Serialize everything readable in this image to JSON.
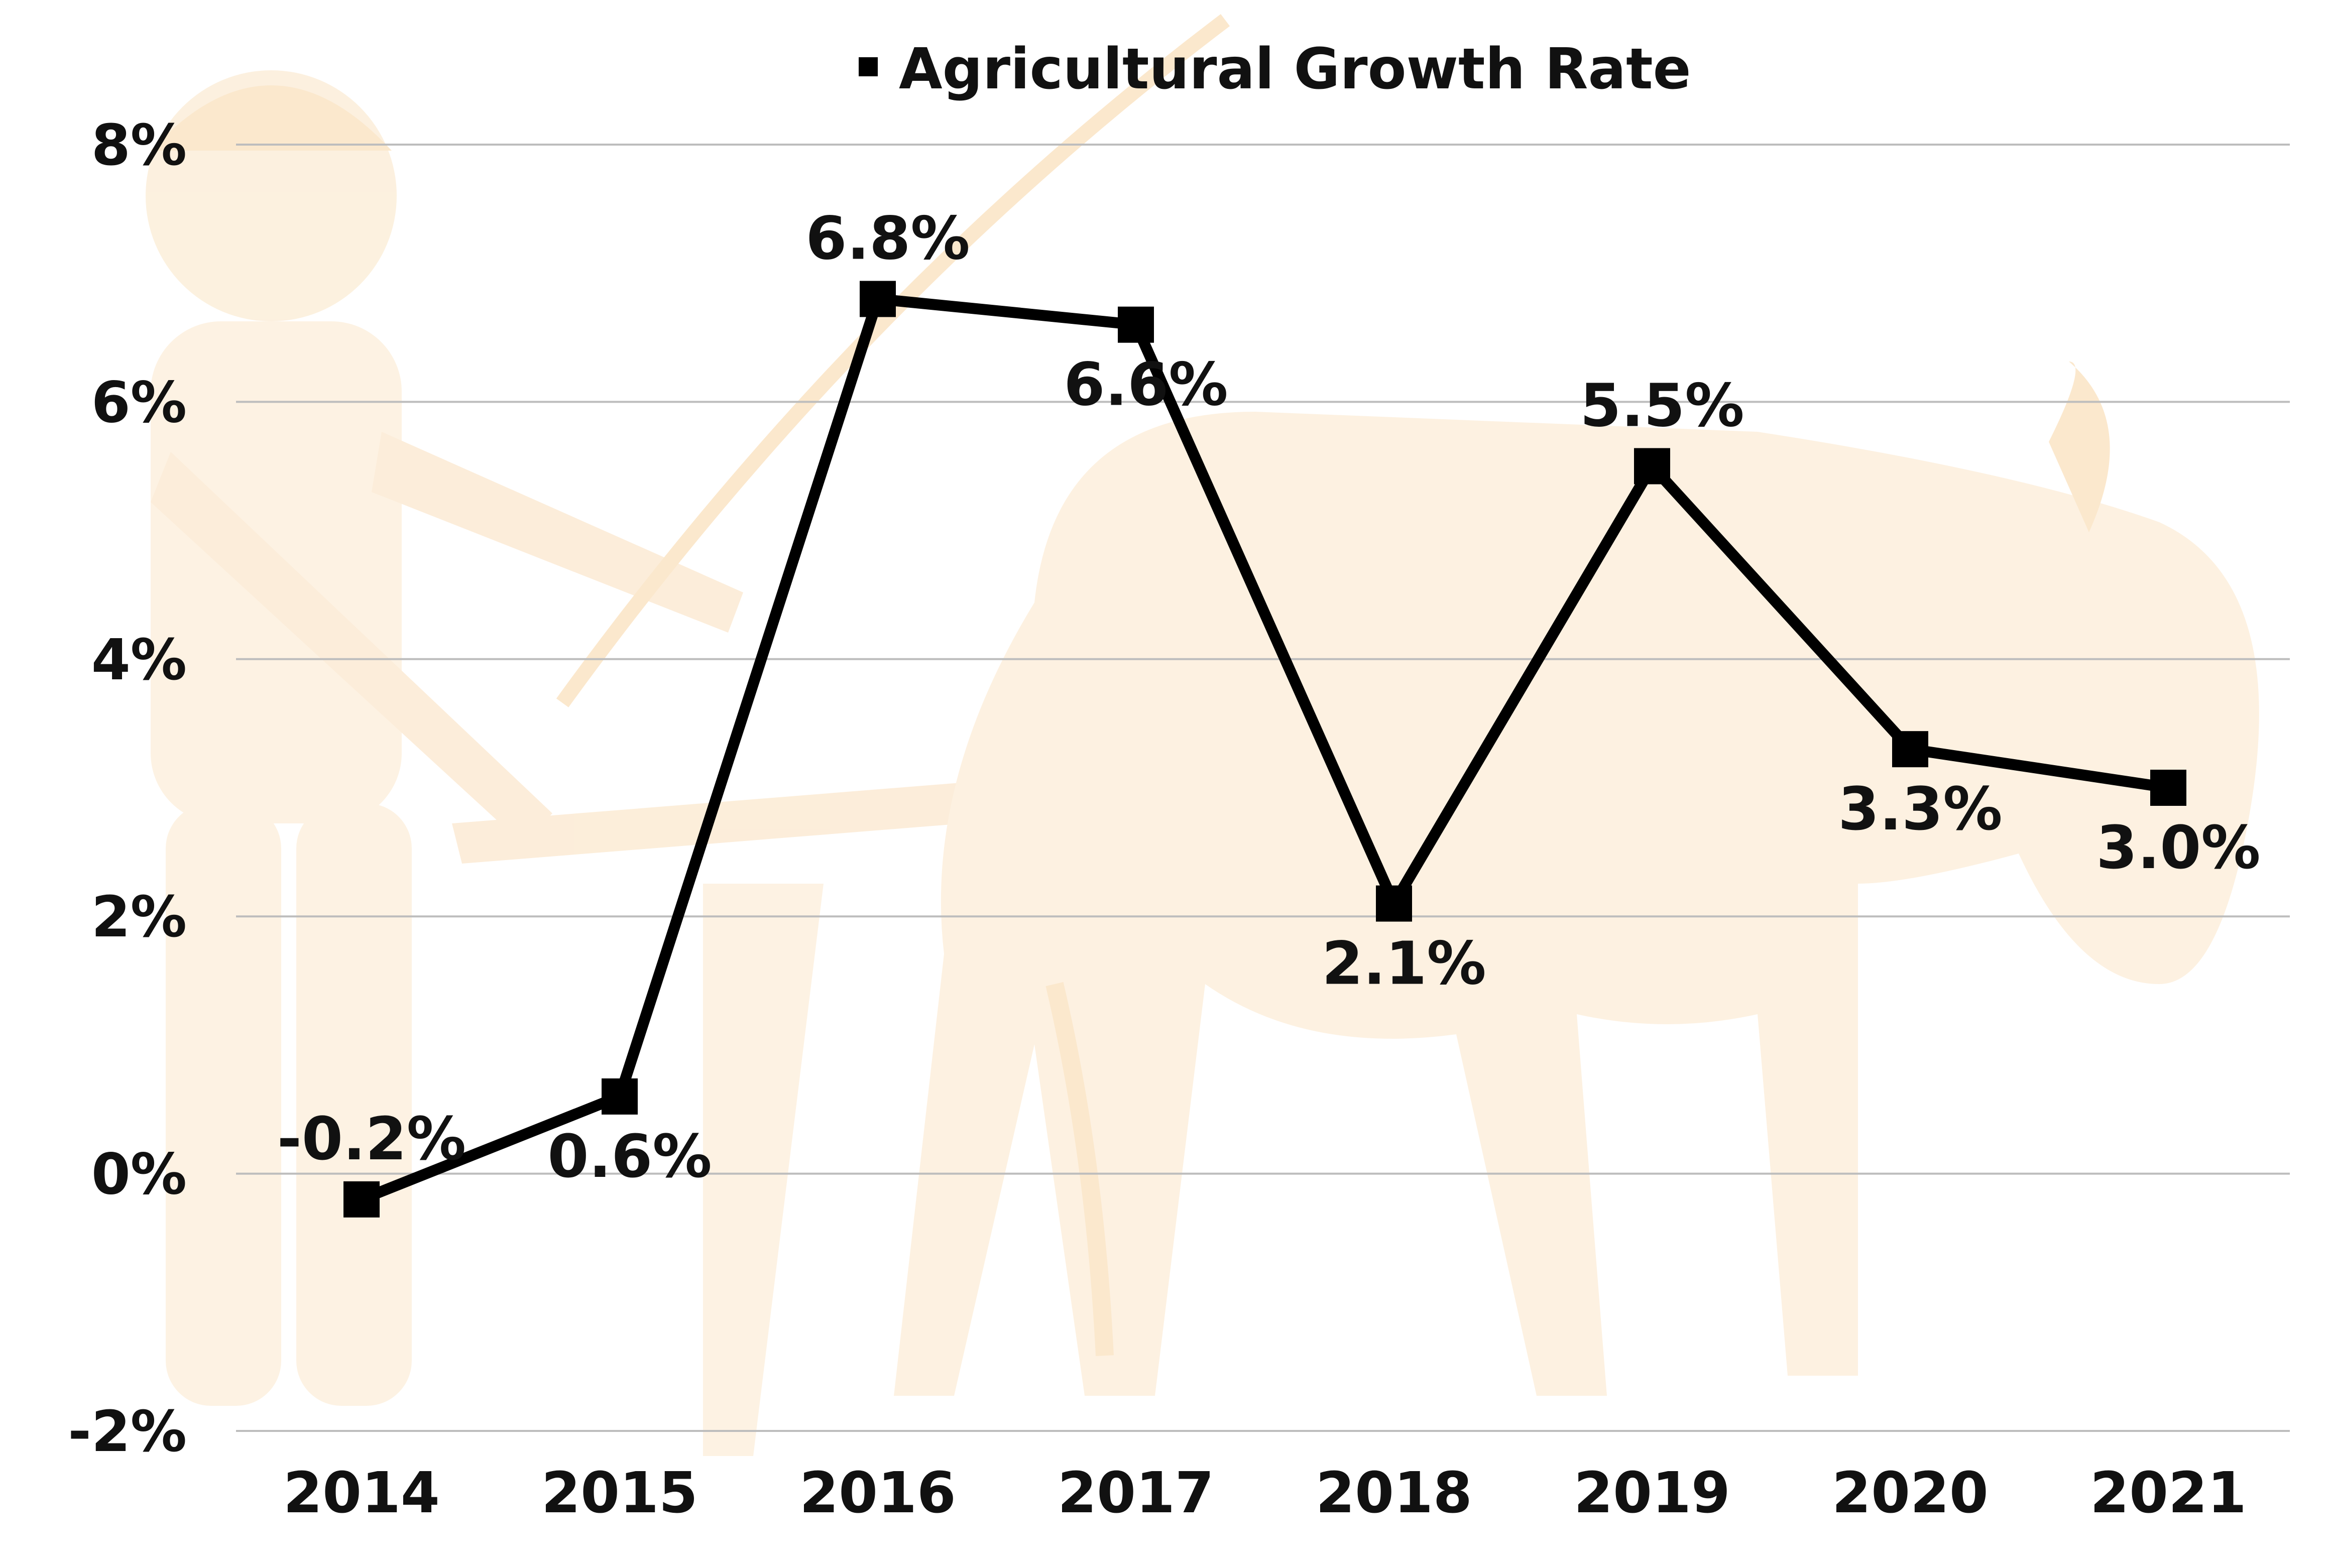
{
  "chart_data": {
    "type": "line",
    "title": "",
    "xlabel": "",
    "ylabel": "",
    "categories": [
      "2014",
      "2015",
      "2016",
      "2017",
      "2018",
      "2019",
      "2020",
      "2021"
    ],
    "series": [
      {
        "name": "Agricultural Growth Rate",
        "values": [
          -0.2,
          0.6,
          6.8,
          6.6,
          2.1,
          5.5,
          3.3,
          3.0
        ],
        "labels": [
          "-0.2%",
          "0.6%",
          "6.8%",
          "6.6%",
          "2.1%",
          "5.5%",
          "3.3%",
          "3.0%"
        ],
        "color": "#000000"
      }
    ],
    "ylim": [
      -2,
      8
    ],
    "yticks": [
      -2,
      0,
      2,
      4,
      6,
      8
    ],
    "ytick_labels": [
      "-2%",
      "0%",
      "2%",
      "4%",
      "6%",
      "8%"
    ],
    "grid": true,
    "legend_position": "top-center",
    "gridline_color": "#bdbdbd",
    "background_illustration": "farmer-with-ox-watermark"
  }
}
